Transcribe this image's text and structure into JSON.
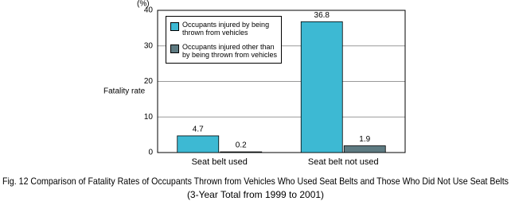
{
  "chart_data": {
    "type": "bar",
    "y_unit": "(%)",
    "y_label": "Fatality rate",
    "categories": [
      "Seat belt used",
      "Seat belt not used"
    ],
    "series": [
      {
        "name": "Occupants injured by being thrown from vehicles",
        "color": "#3db9d3",
        "values": [
          4.7,
          36.8
        ]
      },
      {
        "name": "Occupants injured other than by being thrown from vehicles",
        "color": "#5e7b82",
        "values": [
          0.2,
          1.9
        ]
      }
    ],
    "ylim": [
      0,
      40
    ],
    "yticks": [
      0,
      10,
      20,
      30,
      40
    ],
    "grid": true,
    "legend": "upper left",
    "caption": [
      "Fig. 12 Comparison of Fatality Rates of Occupants Thrown from Vehicles Who Used Seat Belts and Those Who Did Not Use Seat Belts",
      "(3-Year Total from 1999 to 2001)"
    ]
  }
}
